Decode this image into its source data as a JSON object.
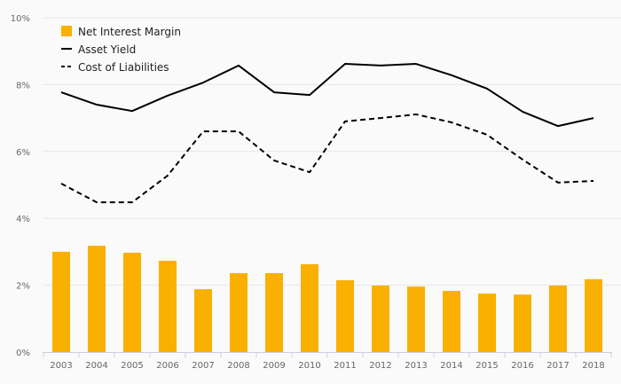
{
  "chart_data": {
    "type": "bar+line",
    "title": "",
    "xlabel": "",
    "ylabel": "",
    "ylim": [
      0,
      10
    ],
    "yticks": [
      "0%",
      "2%",
      "4%",
      "6%",
      "8%",
      "10%"
    ],
    "ytick_values": [
      0,
      2,
      4,
      6,
      8,
      10
    ],
    "grid": true,
    "legend_position": "top-left",
    "categories": [
      "2003",
      "2004",
      "2005",
      "2006",
      "2007",
      "2008",
      "2009",
      "2010",
      "2011",
      "2012",
      "2013",
      "2014",
      "2015",
      "2016",
      "2017",
      "2018"
    ],
    "series": [
      {
        "name": "Net Interest Margin",
        "kind": "bar",
        "color": "#f9b000",
        "values": [
          3.0,
          3.18,
          2.97,
          2.73,
          1.88,
          2.36,
          2.36,
          2.63,
          2.15,
          1.99,
          1.96,
          1.83,
          1.75,
          1.72,
          1.99,
          2.18
        ]
      },
      {
        "name": "Asset Yield",
        "kind": "line",
        "style": "solid",
        "color": "#000000",
        "values": [
          7.77,
          7.4,
          7.21,
          7.67,
          8.06,
          8.57,
          7.77,
          7.69,
          8.62,
          8.57,
          8.62,
          8.28,
          7.88,
          7.19,
          6.76,
          7.0
        ]
      },
      {
        "name": "Cost of Liabilities",
        "kind": "line",
        "style": "dashed",
        "color": "#000000",
        "values": [
          5.04,
          4.48,
          4.48,
          5.28,
          6.6,
          6.6,
          5.73,
          5.38,
          6.9,
          7.0,
          7.11,
          6.87,
          6.5,
          5.76,
          5.07,
          5.12
        ]
      }
    ]
  }
}
